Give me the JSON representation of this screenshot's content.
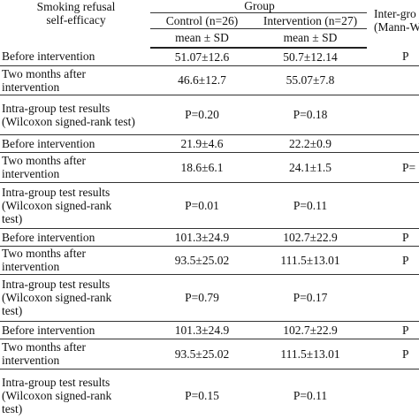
{
  "table": {
    "header": {
      "variable": [
        "Smoking refusal",
        "self-efficacy"
      ],
      "group": "Group",
      "control": "Control (n=26)",
      "intervention": "Intervention (n=27)",
      "control_stat": "mean ± SD",
      "intervention_stat": "mean ± SD",
      "inter_group": [
        "Inter-gro",
        "(Mann-W"
      ]
    },
    "rows": [
      {
        "label": [
          "Before intervention"
        ],
        "control": "51.07±12.6",
        "intervention": "50.7±12.14",
        "inter": "P"
      },
      {
        "label": [
          "Two months after",
          "intervention"
        ],
        "control": "46.6±12.7",
        "intervention": "55.07±7.8"
      },
      {
        "label": [
          "Intra-group test results",
          "(Wilcoxon signed-rank test)"
        ],
        "control": "P=0.20",
        "intervention": "P=0.18"
      },
      {
        "label": [
          "Before intervention"
        ],
        "control": "21.9±4.6",
        "intervention": "22.2±0.9"
      },
      {
        "label": [
          "Two months after",
          "intervention"
        ],
        "control": "18.6±6.1",
        "intervention": "24.1±1.5",
        "inter": "P="
      },
      {
        "label": [
          "Intra-group test results",
          "(Wilcoxon signed-rank",
          "test)"
        ],
        "control": "P=0.01",
        "intervention": "P=0.11"
      },
      {
        "label": [
          "Before intervention"
        ],
        "control": "101.3±24.9",
        "intervention": "102.7±22.9",
        "inter": "P"
      },
      {
        "label": [
          "Two months after",
          "intervention"
        ],
        "control": "93.5±25.02",
        "intervention": "111.5±13.01",
        "inter": "P"
      },
      {
        "label": [
          "Intra-group test results",
          "(Wilcoxon signed-rank",
          "test)"
        ],
        "control": "P=0.79",
        "intervention": "P=0.17"
      },
      {
        "label": [
          "Before intervention"
        ],
        "control": "101.3±24.9",
        "intervention": "102.7±22.9",
        "inter": "P"
      },
      {
        "label": [
          "Two months after",
          "intervention"
        ],
        "control": "93.5±25.02",
        "intervention": "111.5±13.01",
        "inter": "P"
      },
      {
        "label": [
          "Intra-group test results",
          "(Wilcoxon signed-rank",
          "test)"
        ],
        "control": "P=0.15",
        "intervention": "P=0.11"
      }
    ]
  }
}
